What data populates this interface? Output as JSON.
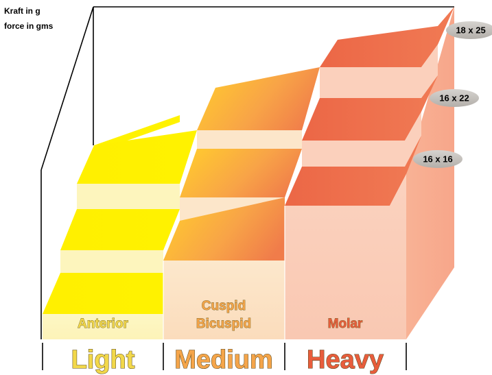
{
  "axis": {
    "line1": "Kraft in g",
    "line2": "force in gms"
  },
  "wire_sizes": [
    "16 x 16",
    "16 x 22",
    "18 x 25"
  ],
  "regions": [
    {
      "label_lines": [
        "Anterior"
      ],
      "force": "Light",
      "top_color": "#fff000",
      "side_color": "#fdf6c0",
      "text_color": "#f2d84a"
    },
    {
      "label_lines": [
        "Cuspid",
        "Bicuspid"
      ],
      "force": "Medium",
      "top_color": "#f7a040",
      "side_color": "#fbe3c4",
      "text_color": "#f5a54a"
    },
    {
      "label_lines": [
        "Molar"
      ],
      "force": "Heavy",
      "top_color": "#ee6a48",
      "side_color": "#fbcdb8",
      "text_color": "#e85d3c"
    }
  ]
}
